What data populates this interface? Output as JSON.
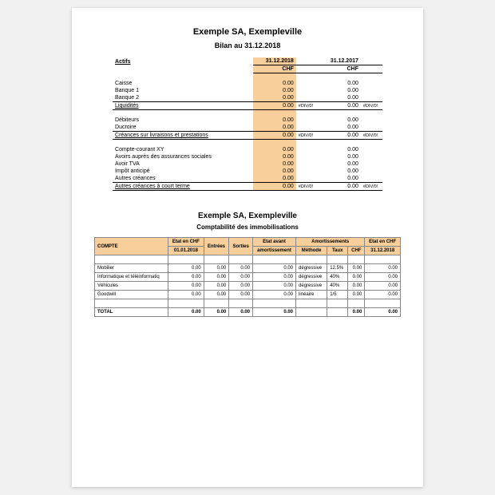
{
  "colors": {
    "highlight": "#f8cf9a",
    "border": "#888888",
    "page_bg": "#ffffff",
    "canvas_bg": "#f0f0f0"
  },
  "balance": {
    "company": "Exemple SA, Exempleville",
    "title": "Bilan au 31.12.2018",
    "section_label": "Actifs",
    "col1_h1": "31.12.2018",
    "col1_h2": "CHF",
    "col2_h1": "31.12.2017",
    "col2_h2": "CHF",
    "zero": "0.00",
    "div": "#DIV/0!",
    "rows": {
      "caisse": "Caisse",
      "banque1": "Banque 1",
      "banque2": "Banque 2",
      "liquidites": "Liquidités",
      "debiteurs": "Débiteurs",
      "ducroire": "Ducroire",
      "creances_liv": "Créances sur livraisons et prestations",
      "cc_xy": "Compte-courant XY",
      "avoirs_soc": "Avoirs auprès des assurances sociales",
      "avoir_tva": "Avoir TVA",
      "impot_ant": "Impôt anticipé",
      "autres_cr": "Autres créances",
      "autres_cr_ct": "Autres créances à court terme"
    }
  },
  "fixed_assets": {
    "company": "Exemple SA, Exempleville",
    "title": "Comptabilité des immobilisations",
    "headers": {
      "compte": "COMPTE",
      "etat_chf": "Etat en CHF",
      "d_open": "01.01.2018",
      "entrees": "Entrées",
      "sorties": "Sorties",
      "etat_avant": "Etat avant",
      "amort_l2": "amortissement",
      "amort_grp": "Amortissements",
      "methode": "Méthode",
      "taux": "Taux",
      "chf": "CHF",
      "etat_close": "Etat en CHF",
      "d_close": "31.12.2018"
    },
    "rows": [
      {
        "label": "Mobilier",
        "methode": "dégressive",
        "taux": "12.5%"
      },
      {
        "label": "Informatique et téléinformatiq",
        "methode": "dégressive",
        "taux": "40%"
      },
      {
        "label": "Véhicules",
        "methode": "dégressive",
        "taux": "40%"
      },
      {
        "label": "Goodwill",
        "methode": "linéaire",
        "taux": "1/5"
      }
    ],
    "zero": "0.00",
    "total_label": "TOTAL"
  }
}
